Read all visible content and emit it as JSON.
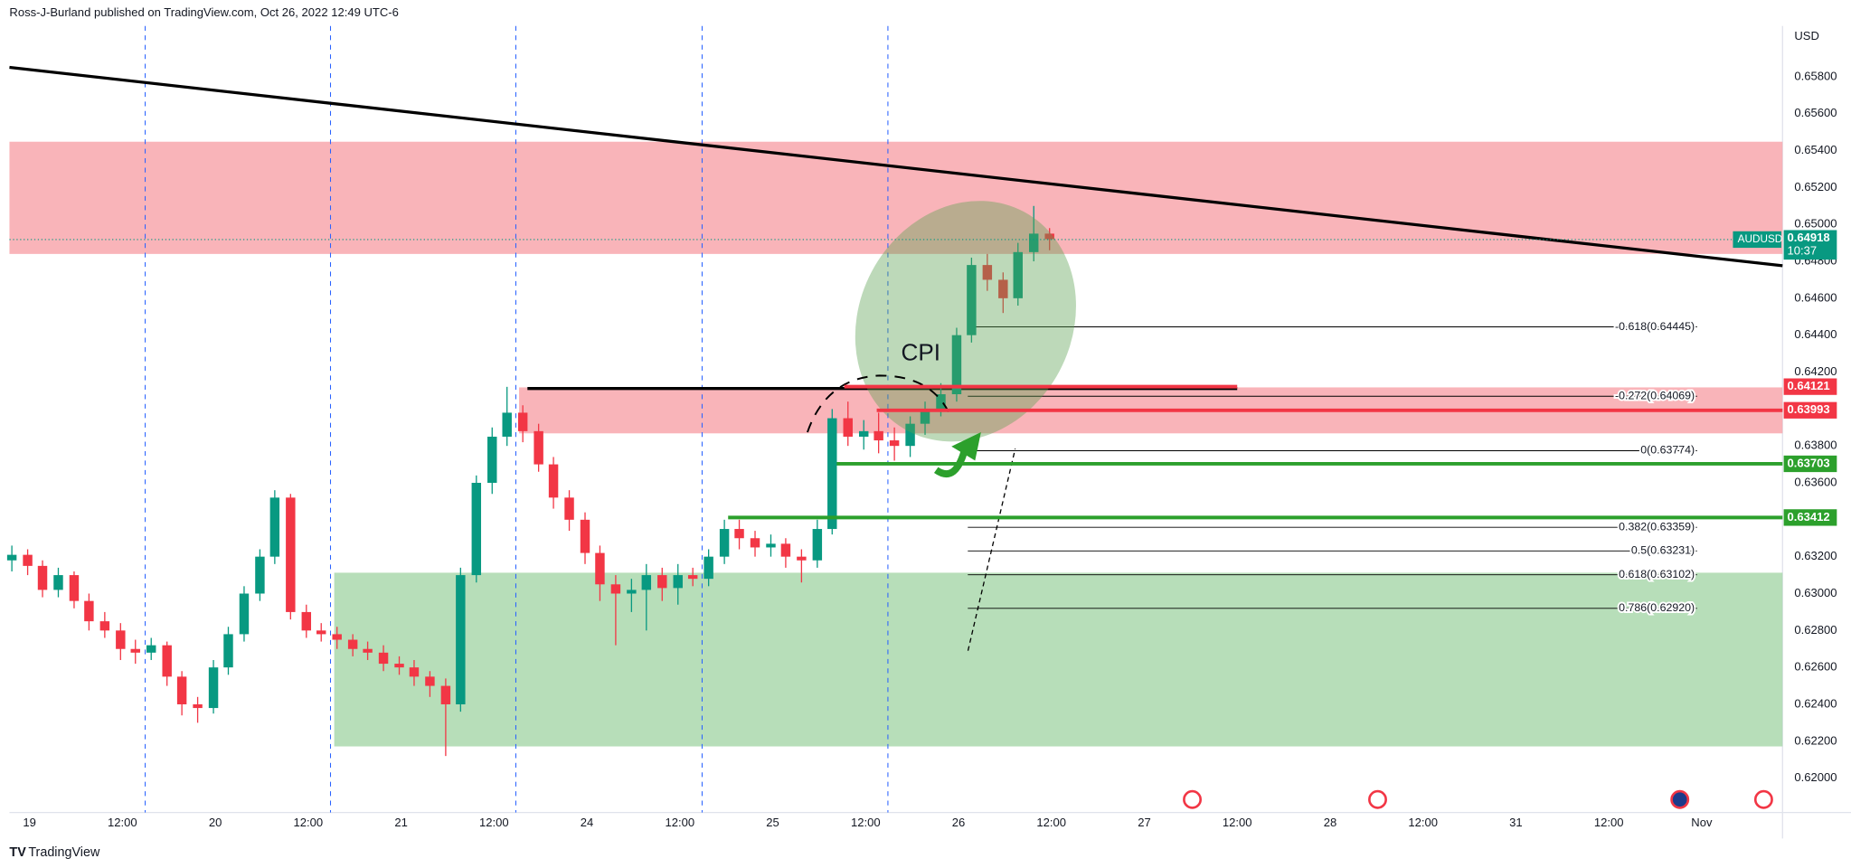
{
  "chart_data": {
    "type": "candlestick",
    "header": "Ross-J-Burland published on TradingView.com, Oct 26, 2022 12:49 UTC-6",
    "currency": "USD",
    "symbol": "AUDUSD",
    "last_price": {
      "value": 0.64918,
      "label": "0.64918"
    },
    "countdown": "10:37",
    "annotation": "CPI",
    "brand": "TradingView",
    "up_color": "#089981",
    "down_color": "#f23645",
    "xlim": [
      -0.216,
      18.87
    ],
    "ylim": [
      0.61814,
      0.66075
    ],
    "xticks": [
      {
        "value": 0,
        "label": "19"
      },
      {
        "value": 1,
        "label": "12:00"
      },
      {
        "value": 2,
        "label": "20"
      },
      {
        "value": 3,
        "label": "12:00"
      },
      {
        "value": 4,
        "label": "21"
      },
      {
        "value": 5,
        "label": "12:00"
      },
      {
        "value": 6,
        "label": "24"
      },
      {
        "value": 7,
        "label": "12:00"
      },
      {
        "value": 8,
        "label": "25"
      },
      {
        "value": 9,
        "label": "12:00"
      },
      {
        "value": 10,
        "label": "26"
      },
      {
        "value": 11,
        "label": "12:00"
      },
      {
        "value": 12,
        "label": "27"
      },
      {
        "value": 13,
        "label": "12:00"
      },
      {
        "value": 14,
        "label": "28"
      },
      {
        "value": 15,
        "label": "12:00"
      },
      {
        "value": 16,
        "label": "31"
      },
      {
        "value": 17,
        "label": "12:00"
      },
      {
        "value": 18,
        "label": "Nov"
      }
    ],
    "yticks": [
      {
        "value": 0.658,
        "label": "0.65800"
      },
      {
        "value": 0.656,
        "label": "0.65600"
      },
      {
        "value": 0.654,
        "label": "0.65400"
      },
      {
        "value": 0.652,
        "label": "0.65200"
      },
      {
        "value": 0.65,
        "label": "0.65000"
      },
      {
        "value": 0.648,
        "label": "0.64800"
      },
      {
        "value": 0.646,
        "label": "0.64600"
      },
      {
        "value": 0.644,
        "label": "0.64400"
      },
      {
        "value": 0.642,
        "label": "0.64200"
      },
      {
        "value": 0.64,
        "label": "0.64000"
      },
      {
        "value": 0.638,
        "label": "0.63800"
      },
      {
        "value": 0.636,
        "label": "0.63600"
      },
      {
        "value": 0.634,
        "label": "0.63400"
      },
      {
        "value": 0.632,
        "label": "0.63200"
      },
      {
        "value": 0.63,
        "label": "0.63000"
      },
      {
        "value": 0.628,
        "label": "0.62800"
      },
      {
        "value": 0.626,
        "label": "0.62600"
      },
      {
        "value": 0.624,
        "label": "0.62400"
      },
      {
        "value": 0.622,
        "label": "0.62200"
      },
      {
        "value": 0.62,
        "label": "0.62000"
      }
    ],
    "session_lines": [
      1.245,
      3.24,
      5.235,
      7.24,
      9.24
    ],
    "zones": [
      {
        "x0": -0.216,
        "y": [
          0.6484,
          0.65448
        ],
        "color": "#f7a1a8"
      },
      {
        "x0": 5.27,
        "y": [
          0.63868,
          0.64117
        ],
        "color": "#f7a1a8"
      },
      {
        "x0": 3.28,
        "y": [
          0.62172,
          0.63113
        ],
        "color": "#a5d6a7"
      }
    ],
    "trendline": {
      "x": [
        -0.216,
        18.87
      ],
      "y": [
        0.65851,
        0.64776
      ]
    },
    "resistance_line": {
      "x": [
        5.36,
        13.0
      ],
      "y": 0.64111
    },
    "levels": [
      {
        "value": 0.64121,
        "label": "0.64121",
        "color": "#f23645",
        "x": [
          8.77,
          13.0
        ]
      },
      {
        "value": 0.63993,
        "label": "0.63993",
        "color": "#f23645",
        "x": [
          9.12,
          18.87
        ]
      },
      {
        "value": 0.63703,
        "label": "0.63703",
        "color": "#2ca02c",
        "x": [
          8.69,
          18.87
        ]
      },
      {
        "value": 0.63412,
        "label": "0.63412",
        "color": "#2ca02c",
        "x": [
          7.52,
          18.87
        ]
      }
    ],
    "fib_levels": [
      {
        "value": 0.64445,
        "label": "-0.618(0.64445)"
      },
      {
        "value": 0.64069,
        "label": "-0.272(0.64069)"
      },
      {
        "value": 0.63774,
        "label": "0(0.63774)"
      },
      {
        "value": 0.63359,
        "label": "0.382(0.63359)"
      },
      {
        "value": 0.63231,
        "label": "0.5(0.63231)"
      },
      {
        "value": 0.63102,
        "label": "0.618(0.63102)"
      },
      {
        "value": 0.6292,
        "label": "0.786(0.62920)"
      }
    ],
    "fib_x": [
      10.1,
      17.95
    ],
    "x": [
      -0.19,
      -0.02,
      0.14,
      0.31,
      0.48,
      0.64,
      0.81,
      0.98,
      1.14,
      1.31,
      1.48,
      1.64,
      1.81,
      1.98,
      2.14,
      2.31,
      2.48,
      2.64,
      2.81,
      2.98,
      3.14,
      3.31,
      3.48,
      3.64,
      3.81,
      3.98,
      4.14,
      4.31,
      4.48,
      4.64,
      4.81,
      4.98,
      5.14,
      5.31,
      5.48,
      5.64,
      5.81,
      5.98,
      6.14,
      6.31,
      6.48,
      6.64,
      6.81,
      6.98,
      7.14,
      7.31,
      7.48,
      7.64,
      7.81,
      7.98,
      8.14,
      8.31,
      8.48,
      8.64,
      8.81,
      8.98,
      9.14,
      9.31,
      9.48,
      9.64,
      9.81,
      9.98,
      10.14,
      10.31,
      10.48,
      10.64,
      10.81,
      10.98
    ],
    "candles": [
      [
        0.6318,
        0.6326,
        0.6312,
        0.6321
      ],
      [
        0.6321,
        0.6324,
        0.631,
        0.6315
      ],
      [
        0.6315,
        0.6318,
        0.6298,
        0.6302
      ],
      [
        0.6302,
        0.6314,
        0.6298,
        0.631
      ],
      [
        0.631,
        0.6312,
        0.6292,
        0.6296
      ],
      [
        0.6296,
        0.63,
        0.628,
        0.6285
      ],
      [
        0.6285,
        0.629,
        0.6276,
        0.628
      ],
      [
        0.628,
        0.6284,
        0.6264,
        0.627
      ],
      [
        0.627,
        0.6275,
        0.6262,
        0.6268
      ],
      [
        0.6268,
        0.6276,
        0.6264,
        0.6272
      ],
      [
        0.6272,
        0.6274,
        0.625,
        0.6255
      ],
      [
        0.6255,
        0.6258,
        0.6234,
        0.624
      ],
      [
        0.624,
        0.6244,
        0.623,
        0.6238
      ],
      [
        0.6238,
        0.6264,
        0.6235,
        0.626
      ],
      [
        0.626,
        0.6282,
        0.6256,
        0.6278
      ],
      [
        0.6278,
        0.6304,
        0.6274,
        0.63
      ],
      [
        0.63,
        0.6324,
        0.6296,
        0.632
      ],
      [
        0.632,
        0.6356,
        0.6316,
        0.6352
      ],
      [
        0.6352,
        0.6354,
        0.6286,
        0.629
      ],
      [
        0.629,
        0.6294,
        0.6276,
        0.628
      ],
      [
        0.628,
        0.6284,
        0.6274,
        0.6278
      ],
      [
        0.6278,
        0.6282,
        0.627,
        0.6275
      ],
      [
        0.6275,
        0.6278,
        0.6266,
        0.627
      ],
      [
        0.627,
        0.6274,
        0.6264,
        0.6268
      ],
      [
        0.6268,
        0.6272,
        0.6258,
        0.6262
      ],
      [
        0.6262,
        0.6266,
        0.6256,
        0.626
      ],
      [
        0.626,
        0.6264,
        0.625,
        0.6255
      ],
      [
        0.6255,
        0.6258,
        0.6244,
        0.625
      ],
      [
        0.625,
        0.6254,
        0.6212,
        0.624
      ],
      [
        0.624,
        0.6314,
        0.6236,
        0.631
      ],
      [
        0.631,
        0.6364,
        0.6306,
        0.636
      ],
      [
        0.636,
        0.639,
        0.6354,
        0.6385
      ],
      [
        0.6385,
        0.6412,
        0.638,
        0.6398
      ],
      [
        0.6398,
        0.6402,
        0.6382,
        0.6388
      ],
      [
        0.6388,
        0.6392,
        0.6366,
        0.637
      ],
      [
        0.637,
        0.6374,
        0.6346,
        0.6352
      ],
      [
        0.6352,
        0.6356,
        0.6334,
        0.634
      ],
      [
        0.634,
        0.6344,
        0.6316,
        0.6322
      ],
      [
        0.6322,
        0.6326,
        0.6296,
        0.6305
      ],
      [
        0.6305,
        0.631,
        0.6272,
        0.63
      ],
      [
        0.63,
        0.6308,
        0.629,
        0.6302
      ],
      [
        0.6302,
        0.6316,
        0.628,
        0.631
      ],
      [
        0.631,
        0.6314,
        0.6296,
        0.6303
      ],
      [
        0.6303,
        0.6316,
        0.6294,
        0.631
      ],
      [
        0.631,
        0.6314,
        0.6304,
        0.6308
      ],
      [
        0.6308,
        0.6324,
        0.6304,
        0.632
      ],
      [
        0.632,
        0.634,
        0.6316,
        0.6335
      ],
      [
        0.6335,
        0.634,
        0.6324,
        0.633
      ],
      [
        0.633,
        0.6334,
        0.632,
        0.6325
      ],
      [
        0.6325,
        0.6332,
        0.632,
        0.6327
      ],
      [
        0.6327,
        0.633,
        0.6314,
        0.632
      ],
      [
        0.632,
        0.6324,
        0.6306,
        0.6318
      ],
      [
        0.6318,
        0.634,
        0.6314,
        0.6335
      ],
      [
        0.6335,
        0.64,
        0.6332,
        0.6395
      ],
      [
        0.6395,
        0.6404,
        0.638,
        0.6385
      ],
      [
        0.6385,
        0.6394,
        0.6378,
        0.6388
      ],
      [
        0.6388,
        0.6398,
        0.6376,
        0.6383
      ],
      [
        0.6383,
        0.639,
        0.6372,
        0.638
      ],
      [
        0.638,
        0.6396,
        0.6374,
        0.6392
      ],
      [
        0.6392,
        0.6404,
        0.6386,
        0.64
      ],
      [
        0.64,
        0.6414,
        0.6396,
        0.6408
      ],
      [
        0.6408,
        0.6444,
        0.6404,
        0.644
      ],
      [
        0.644,
        0.6482,
        0.6436,
        0.6478
      ],
      [
        0.6478,
        0.6484,
        0.6464,
        0.647
      ],
      [
        0.647,
        0.6474,
        0.6452,
        0.646
      ],
      [
        0.646,
        0.649,
        0.6456,
        0.6485
      ],
      [
        0.6485,
        0.651,
        0.648,
        0.6495
      ],
      [
        0.6495,
        0.6498,
        0.6486,
        0.6492
      ]
    ]
  }
}
